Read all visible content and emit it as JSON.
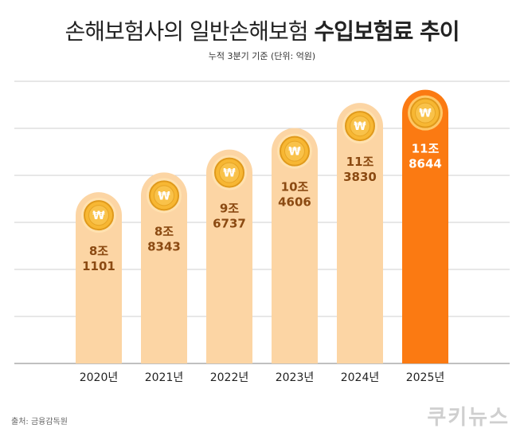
{
  "title": {
    "main": "손해보험사의 일반손해보험",
    "emphasis": "수입보험료 추이"
  },
  "subtitle": "누적 3분기 기준 (단위: 억원)",
  "source": "출처: 금융감독원",
  "brand": "쿠키뉴스",
  "colors": {
    "bar": "#fcd5a4",
    "bar_highlight": "#fb7a12",
    "label": "#8b4a12",
    "label_highlight": "#ffffff",
    "coin_gold": "#f7b733",
    "coin_edge": "#e09a1c",
    "grid": "#cfcfcf"
  },
  "chart_data": {
    "type": "bar",
    "categories": [
      "2020년",
      "2021년",
      "2022년",
      "2023년",
      "2024년",
      "2025년"
    ],
    "values": [
      81101,
      88343,
      96737,
      104606,
      113830,
      118644
    ],
    "labels": [
      [
        "8조",
        "1101"
      ],
      [
        "8조",
        "8343"
      ],
      [
        "9조",
        "6737"
      ],
      [
        "10조",
        "4606"
      ],
      [
        "11조",
        "3830"
      ],
      [
        "11조",
        "8644"
      ]
    ],
    "highlight_index": 5,
    "coin_symbol": "₩",
    "grid": true
  }
}
